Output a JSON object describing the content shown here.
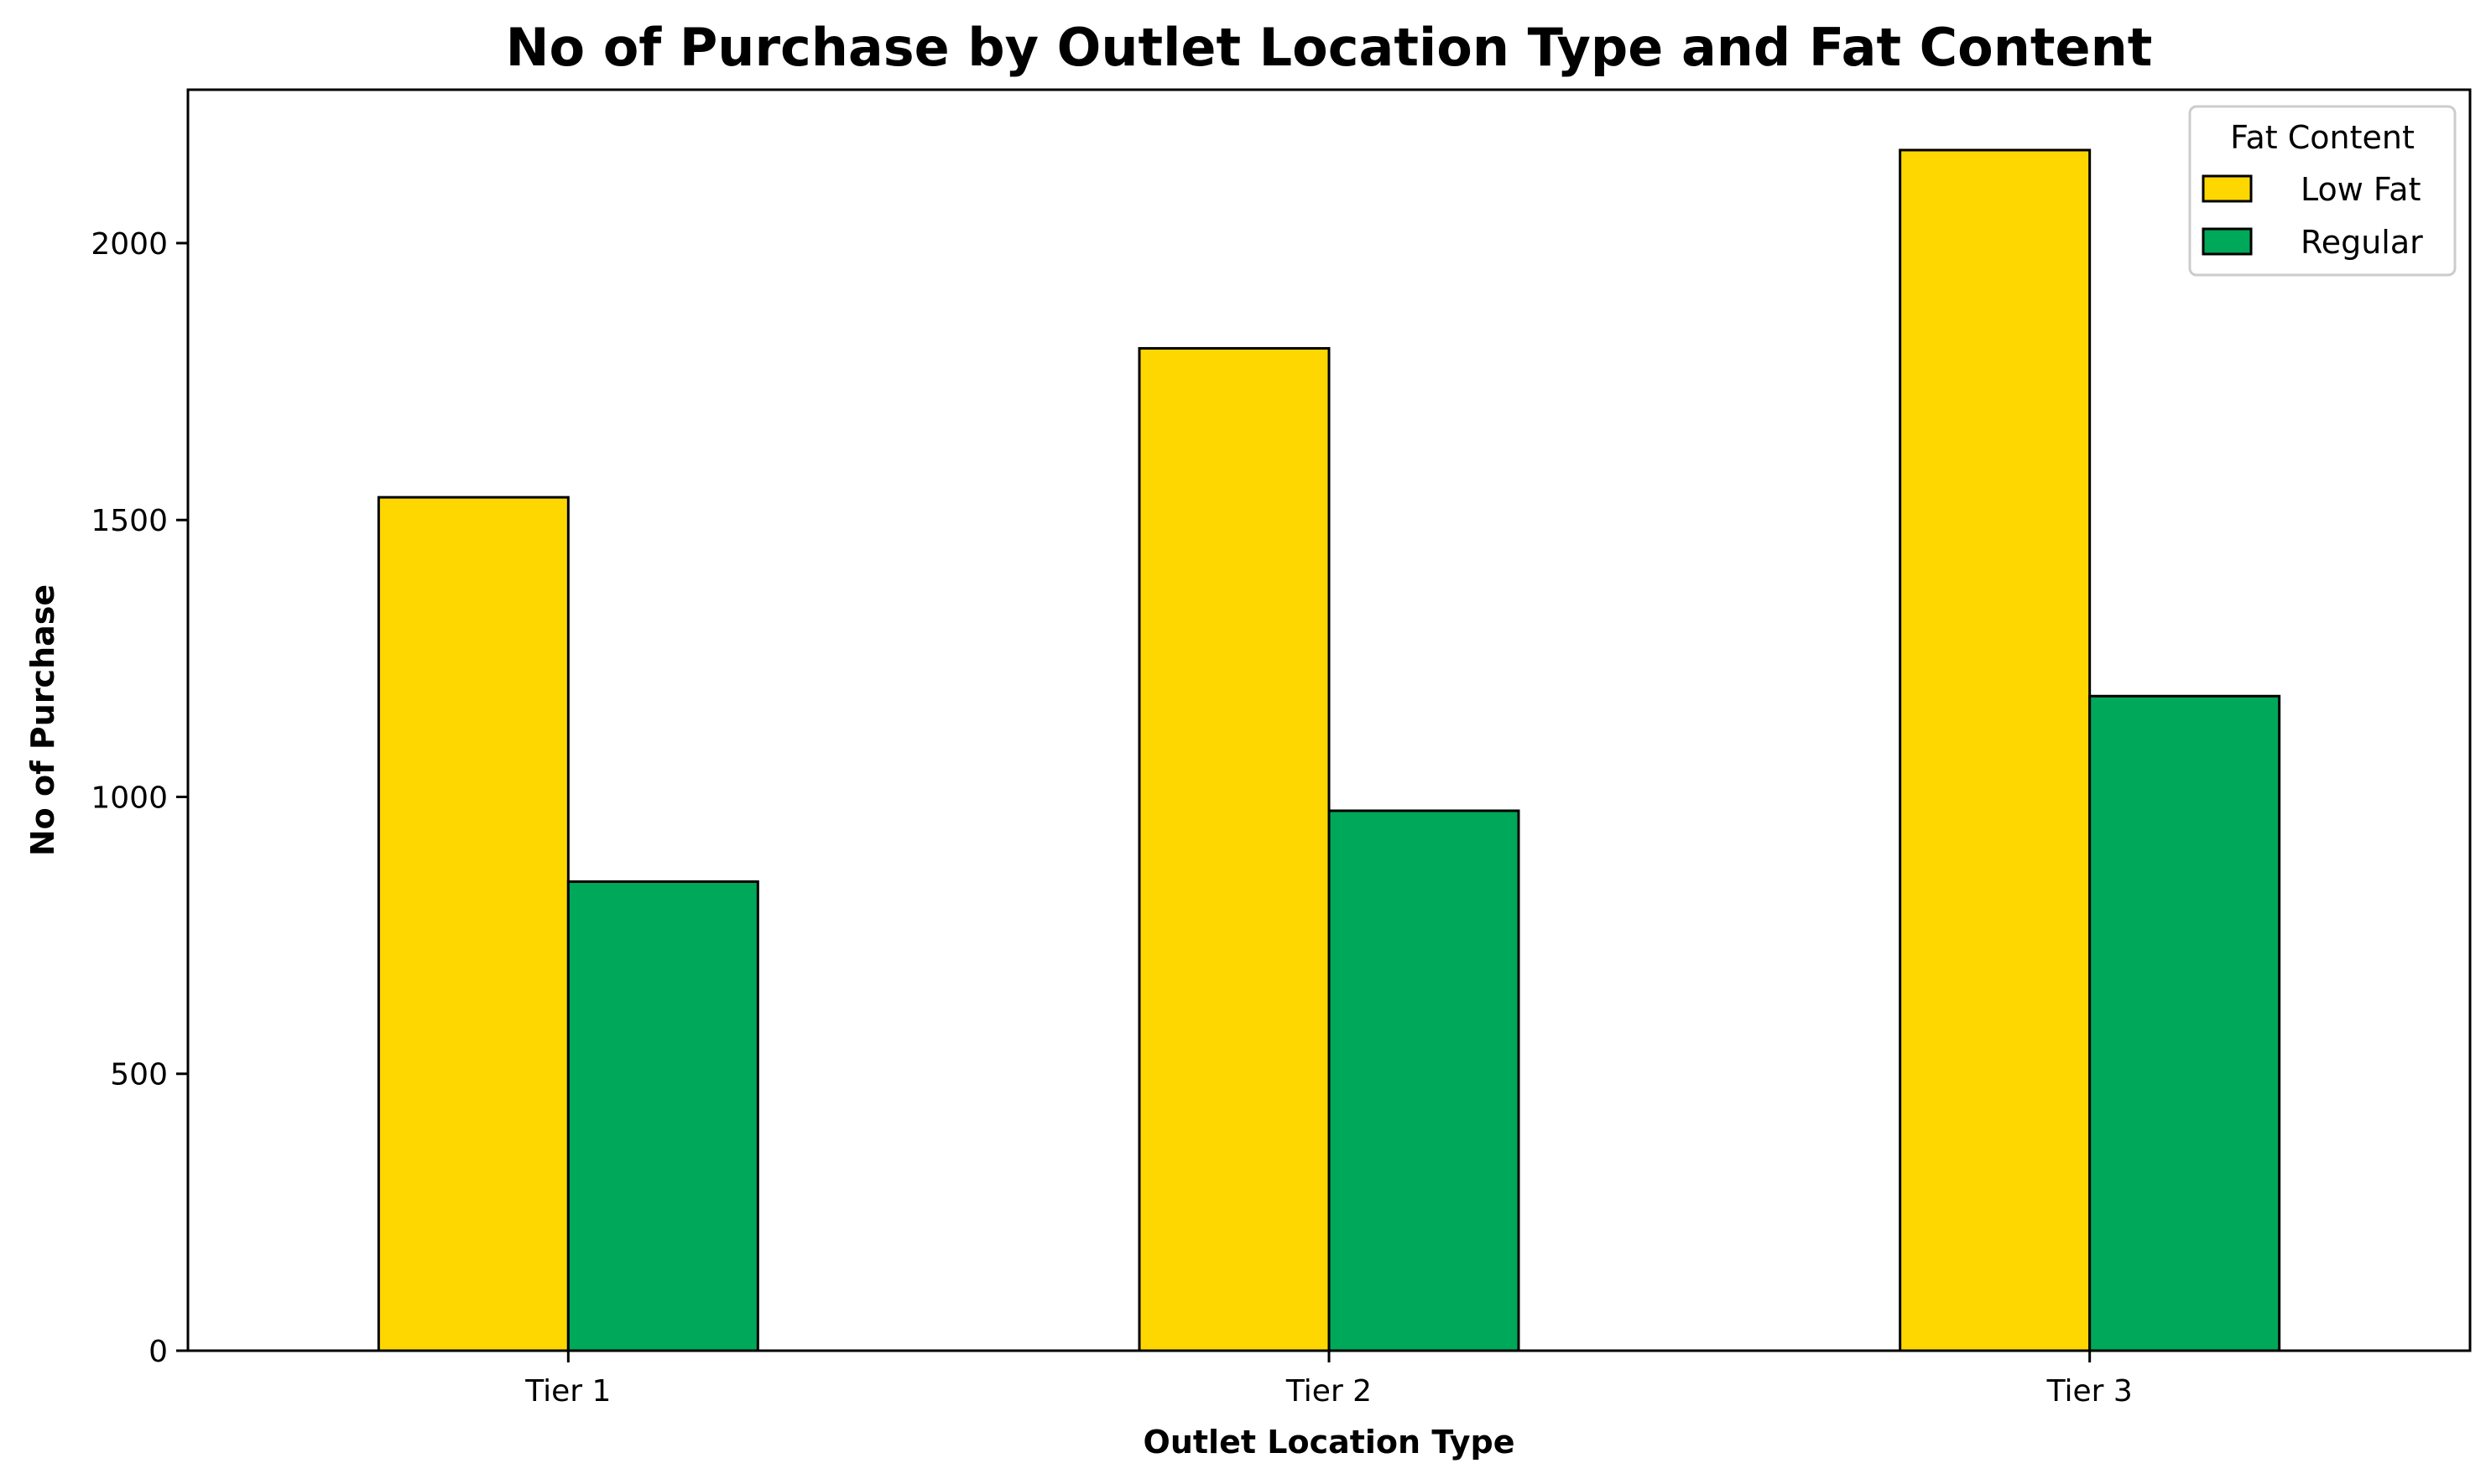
{
  "chart_data": {
    "type": "bar",
    "title": "No of Purchase by Outlet Location Type and Fat Content",
    "xlabel": "Outlet Location Type",
    "ylabel": "No of Purchase",
    "categories": [
      "Tier 1",
      "Tier 2",
      "Tier 3"
    ],
    "series": [
      {
        "name": "Low Fat",
        "values": [
          1541,
          1810,
          2168
        ],
        "color": "#FFD700"
      },
      {
        "name": "Regular",
        "values": [
          847,
          975,
          1182
        ],
        "color": "#00A859"
      }
    ],
    "ylim": [
      0,
      2277
    ],
    "yticks": [
      0,
      500,
      1000,
      1500,
      2000
    ],
    "grid": false,
    "legend": {
      "title": "Fat Content",
      "position": "top-right"
    }
  }
}
